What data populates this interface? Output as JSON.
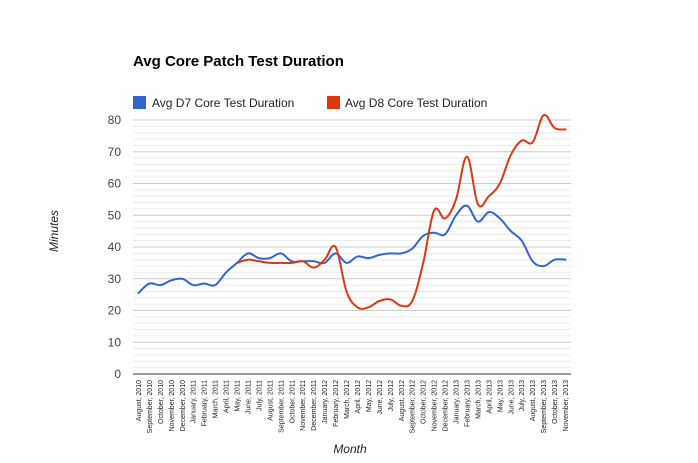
{
  "chart_data": {
    "type": "line",
    "title": "Avg Core Patch Test Duration",
    "xlabel": "Month",
    "ylabel": "Minutes",
    "ylim": [
      0,
      80
    ],
    "yticks": [
      0,
      10,
      20,
      30,
      40,
      50,
      60,
      70,
      80
    ],
    "legend_position": "top-left",
    "categories": [
      "August, 2010",
      "September, 2010",
      "October, 2010",
      "November, 2010",
      "December, 2010",
      "January, 2011",
      "February, 2011",
      "March, 2011",
      "April, 2011",
      "May, 2011",
      "June, 2011",
      "July, 2011",
      "August, 2011",
      "September, 2011",
      "October, 2011",
      "November, 2011",
      "December, 2011",
      "January, 2012",
      "February, 2012",
      "March, 2012",
      "April, 2012",
      "May, 2012",
      "June, 2012",
      "July, 2012",
      "August, 2012",
      "September, 2012",
      "October, 2012",
      "November, 2012",
      "December, 2012",
      "January, 2013",
      "February, 2013",
      "March, 2013",
      "April, 2013",
      "May, 2013",
      "June, 2013",
      "July, 2013",
      "August, 2013",
      "September, 2013",
      "October, 2013",
      "November, 2013"
    ],
    "series": [
      {
        "name": "Avg D7 Core Test Duration",
        "color": "#3366cc",
        "values": [
          25.5,
          28.5,
          28,
          29.5,
          30,
          28,
          28.5,
          28,
          32,
          35,
          38,
          36.5,
          36.5,
          38,
          35.5,
          35.5,
          35.5,
          35,
          38,
          35,
          37,
          36.5,
          37.5,
          38,
          38,
          39.5,
          43.5,
          44.5,
          44,
          50,
          53,
          48,
          51,
          49,
          45,
          42,
          35.5,
          34,
          36,
          36
        ]
      },
      {
        "name": "Avg D8 Core Test Duration",
        "color": "#dc3912",
        "values": [
          null,
          null,
          null,
          null,
          null,
          null,
          null,
          null,
          null,
          35,
          36,
          35.5,
          35,
          35,
          35,
          35.5,
          33.5,
          36,
          40,
          26,
          21,
          21,
          23,
          23.5,
          21.5,
          23,
          35,
          51.5,
          49,
          55,
          68.5,
          53.5,
          56,
          60,
          69,
          73.5,
          73,
          81.5,
          77.5,
          77
        ]
      }
    ]
  }
}
